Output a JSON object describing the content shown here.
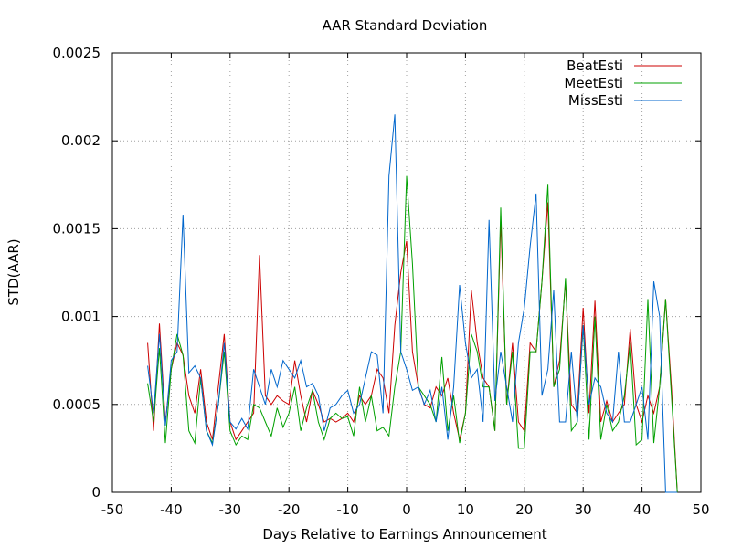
{
  "chart_data": {
    "type": "line",
    "title": "AAR Standard Deviation",
    "xlabel": "Days Relative to Earnings Announcement",
    "ylabel": "STD(AAR)",
    "xlim": [
      -50,
      50
    ],
    "ylim": [
      0,
      0.0025
    ],
    "xticks": [
      "-50",
      "-40",
      "-30",
      "-20",
      "-10",
      "0",
      "10",
      "20",
      "30",
      "40",
      "50"
    ],
    "yticks": [
      "0",
      "0.0005",
      "0.001",
      "0.0015",
      "0.002",
      "0.0025"
    ],
    "grid": true,
    "legend_position": "top-right",
    "x": [
      -44,
      -43,
      -42,
      -41,
      -40,
      -39,
      -38,
      -37,
      -36,
      -35,
      -34,
      -33,
      -32,
      -31,
      -30,
      -29,
      -28,
      -27,
      -26,
      -25,
      -24,
      -23,
      -22,
      -21,
      -20,
      -19,
      -18,
      -17,
      -16,
      -15,
      -14,
      -13,
      -12,
      -11,
      -10,
      -9,
      -8,
      -7,
      -6,
      -5,
      -4,
      -3,
      -2,
      -1,
      0,
      1,
      2,
      3,
      4,
      5,
      6,
      7,
      8,
      9,
      10,
      11,
      12,
      13,
      14,
      15,
      16,
      17,
      18,
      19,
      20,
      21,
      22,
      23,
      24,
      25,
      26,
      27,
      28,
      29,
      30,
      31,
      32,
      33,
      34,
      35,
      36,
      37,
      38,
      39,
      40,
      41,
      42,
      43,
      44,
      45,
      46
    ],
    "series": [
      {
        "name": "BeatEsti",
        "color": "#cc0000",
        "values": [
          0.00085,
          0.00035,
          0.00096,
          0.0004,
          0.0007,
          0.00085,
          0.00078,
          0.00055,
          0.00045,
          0.0007,
          0.0004,
          0.0003,
          0.0006,
          0.0009,
          0.0004,
          0.0003,
          0.00035,
          0.0004,
          0.00045,
          0.00135,
          0.00055,
          0.0005,
          0.00055,
          0.00052,
          0.0005,
          0.00075,
          0.00055,
          0.0004,
          0.00058,
          0.0005,
          0.0004,
          0.00042,
          0.0004,
          0.00042,
          0.00045,
          0.0004,
          0.00055,
          0.0005,
          0.00055,
          0.0007,
          0.00065,
          0.00045,
          0.00095,
          0.00125,
          0.00143,
          0.0008,
          0.0006,
          0.0005,
          0.00048,
          0.0006,
          0.00055,
          0.00065,
          0.00045,
          0.0003,
          0.00045,
          0.00115,
          0.00085,
          0.00065,
          0.0006,
          0.00035,
          0.00155,
          0.0005,
          0.00085,
          0.0004,
          0.00035,
          0.00085,
          0.0008,
          0.0012,
          0.00165,
          0.0006,
          0.00075,
          0.0012,
          0.0005,
          0.00045,
          0.00105,
          0.00045,
          0.00109,
          0.0004,
          0.00052,
          0.0004,
          0.00045,
          0.0005,
          0.00093,
          0.0005,
          0.0004,
          0.00055,
          0.00045,
          0.0006,
          0.0011,
          0.0006,
          0.0
        ]
      },
      {
        "name": "MeetEsti",
        "color": "#00a000",
        "values": [
          0.00062,
          0.0004,
          0.00082,
          0.00028,
          0.0007,
          0.0009,
          0.00078,
          0.00035,
          0.00028,
          0.00065,
          0.00035,
          0.00028,
          0.0005,
          0.0008,
          0.00035,
          0.00027,
          0.00032,
          0.0003,
          0.0005,
          0.00048,
          0.0004,
          0.00032,
          0.00048,
          0.00037,
          0.00045,
          0.0006,
          0.00035,
          0.00048,
          0.00058,
          0.0004,
          0.0003,
          0.00042,
          0.00045,
          0.00042,
          0.00043,
          0.00032,
          0.0006,
          0.0004,
          0.00055,
          0.00035,
          0.00037,
          0.00032,
          0.0006,
          0.0008,
          0.0018,
          0.0013,
          0.0006,
          0.00055,
          0.0005,
          0.0004,
          0.00077,
          0.00035,
          0.00055,
          0.00028,
          0.00045,
          0.0009,
          0.0008,
          0.0006,
          0.0006,
          0.00035,
          0.00162,
          0.0005,
          0.0008,
          0.00025,
          0.00025,
          0.0008,
          0.0008,
          0.0012,
          0.00175,
          0.0006,
          0.0007,
          0.00122,
          0.00035,
          0.0004,
          0.00095,
          0.0003,
          0.001,
          0.0003,
          0.0005,
          0.00035,
          0.0004,
          0.00055,
          0.00085,
          0.00027,
          0.0003,
          0.0011,
          0.00028,
          0.0006,
          0.0011,
          0.00055,
          0.0
        ]
      },
      {
        "name": "MissEsti",
        "color": "#0066cc",
        "values": [
          0.00072,
          0.00045,
          0.0009,
          0.00038,
          0.00075,
          0.0008,
          0.00158,
          0.00068,
          0.00072,
          0.00065,
          0.00035,
          0.00027,
          0.0005,
          0.00085,
          0.0004,
          0.00036,
          0.00042,
          0.00036,
          0.0007,
          0.0006,
          0.0005,
          0.0007,
          0.0006,
          0.00075,
          0.0007,
          0.00065,
          0.00075,
          0.0006,
          0.00062,
          0.00055,
          0.00035,
          0.00048,
          0.0005,
          0.00055,
          0.00058,
          0.00045,
          0.0005,
          0.00065,
          0.0008,
          0.00078,
          0.00045,
          0.0018,
          0.00215,
          0.0008,
          0.0007,
          0.00058,
          0.0006,
          0.0005,
          0.00058,
          0.0004,
          0.0006,
          0.0003,
          0.0006,
          0.00118,
          0.00085,
          0.00065,
          0.0007,
          0.0004,
          0.00155,
          0.00052,
          0.0008,
          0.0006,
          0.0004,
          0.00085,
          0.00105,
          0.0014,
          0.0017,
          0.00055,
          0.0007,
          0.00115,
          0.0004,
          0.0004,
          0.0008,
          0.0004,
          0.00095,
          0.0005,
          0.00065,
          0.0006,
          0.00045,
          0.0004,
          0.0008,
          0.0004,
          0.0004,
          0.0005,
          0.0006,
          0.0003,
          0.0012,
          0.001,
          0.0,
          0.0,
          0.0
        ]
      }
    ]
  }
}
